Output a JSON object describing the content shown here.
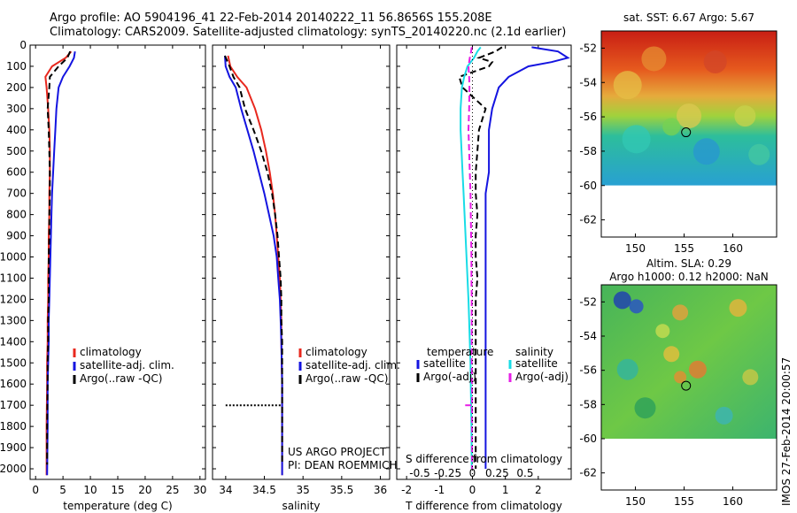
{
  "header": {
    "line1": "Argo profile: AO 5904196_41 22-Feb-2014 20140222_11 56.8656S 155.208E",
    "line2": "Climatology: CARS2009. Satellite-adjusted climatology: synTS_20140220.nc (2.1d earlier)"
  },
  "footer": {
    "project_line1": "US ARGO PROJECT",
    "project_line2": "PI: DEAN ROEMMICH",
    "timestamp": "IMOS 27-Feb-2014 20:00:57"
  },
  "colors": {
    "climatology": "#e8281e",
    "satellite": "#1414e0",
    "argo": "#000000",
    "satellite_salinity": "#19dce6",
    "argo_salinity": "#e61ee6",
    "map_mask": "#ffffff"
  },
  "chart_data": [
    {
      "id": "temperature",
      "type": "line",
      "xlabel": "temperature (deg C)",
      "ylabel": "",
      "xlim": [
        -1,
        31
      ],
      "ylim": [
        0,
        2050
      ],
      "y_inverted": true,
      "xticks": [
        0,
        5,
        10,
        15,
        20,
        25,
        30
      ],
      "yticks": [
        0,
        100,
        200,
        300,
        400,
        500,
        600,
        700,
        800,
        900,
        1000,
        1100,
        1200,
        1300,
        1400,
        1500,
        1600,
        1700,
        1800,
        1900,
        2000
      ],
      "legend": {
        "position": "bottom-right",
        "entries": [
          "climatology",
          "satellite-adj. clim.",
          "Argo(..raw -QC)"
        ]
      },
      "series": [
        {
          "name": "climatology",
          "style": "solid",
          "color_key": "climatology",
          "x": [
            6.5,
            5.5,
            3.0,
            1.8,
            2.0,
            2.3,
            2.5,
            2.6,
            2.6,
            2.5,
            2.5,
            2.4,
            2.4,
            2.3,
            2.3,
            2.2,
            2.2,
            2.1,
            2.1,
            2.0,
            2.0
          ],
          "y": [
            30,
            60,
            100,
            150,
            200,
            300,
            400,
            500,
            600,
            700,
            800,
            900,
            1000,
            1100,
            1200,
            1300,
            1400,
            1500,
            1600,
            1800,
            2030
          ]
        },
        {
          "name": "satellite-adj. clim.",
          "style": "solid",
          "color_key": "satellite",
          "x": [
            7.2,
            7.0,
            6.2,
            5.0,
            4.2,
            3.8,
            3.6,
            3.4,
            3.2,
            3.0,
            2.9,
            2.8,
            2.7,
            2.6,
            2.5,
            2.4,
            2.4,
            2.3,
            2.2,
            2.2,
            2.1
          ],
          "y": [
            30,
            60,
            100,
            150,
            200,
            300,
            400,
            500,
            600,
            700,
            800,
            900,
            1000,
            1100,
            1200,
            1300,
            1400,
            1500,
            1600,
            1800,
            2030
          ]
        },
        {
          "name": "Argo(..raw -QC)",
          "style": "dashed",
          "color_key": "argo",
          "x": [
            6.3,
            5.8,
            4.2,
            2.6,
            2.5,
            2.2,
            2.4,
            2.5,
            2.6,
            2.6,
            2.5,
            2.5,
            2.4,
            2.4,
            2.4,
            2.3,
            2.3,
            2.2,
            2.2,
            2.1,
            2.1
          ],
          "y": [
            30,
            60,
            100,
            150,
            200,
            300,
            400,
            500,
            600,
            700,
            800,
            900,
            1000,
            1100,
            1200,
            1300,
            1400,
            1500,
            1600,
            1800,
            1980
          ]
        }
      ]
    },
    {
      "id": "salinity",
      "type": "line",
      "xlabel": "salinity",
      "ylabel": "",
      "xlim": [
        33.83,
        36.12
      ],
      "ylim": [
        0,
        2050
      ],
      "y_inverted": true,
      "xticks": [
        34,
        34.5,
        35,
        35.5,
        36
      ],
      "legend": {
        "position": "bottom-right",
        "entries": [
          "climatology",
          "satellite-adj. clim.",
          "Argo(..raw -QC)"
        ]
      },
      "series": [
        {
          "name": "climatology",
          "style": "solid",
          "color_key": "climatology",
          "x": [
            34.03,
            34.06,
            34.15,
            34.27,
            34.38,
            34.46,
            34.52,
            34.57,
            34.61,
            34.64,
            34.66,
            34.68,
            34.7,
            34.71,
            34.72,
            34.72,
            34.73,
            34.73,
            34.73
          ],
          "y": [
            50,
            100,
            150,
            200,
            300,
            400,
            500,
            600,
            700,
            800,
            900,
            1000,
            1100,
            1200,
            1300,
            1400,
            1600,
            1800,
            2030
          ]
        },
        {
          "name": "satellite-adj. clim.",
          "style": "solid",
          "color_key": "satellite",
          "x": [
            33.99,
            34.0,
            34.05,
            34.13,
            34.2,
            34.28,
            34.36,
            34.43,
            34.5,
            34.56,
            34.62,
            34.66,
            34.68,
            34.7,
            34.71,
            34.72,
            34.73,
            34.73,
            34.73
          ],
          "y": [
            50,
            100,
            150,
            200,
            300,
            400,
            500,
            600,
            700,
            800,
            900,
            1000,
            1100,
            1200,
            1300,
            1400,
            1600,
            1800,
            2030
          ]
        },
        {
          "name": "Argo(..raw -QC)",
          "style": "dashed",
          "color_key": "argo",
          "x": [
            33.99,
            34.05,
            34.1,
            34.18,
            34.25,
            34.36,
            34.46,
            34.54,
            34.6,
            34.64,
            34.67,
            34.69,
            34.71,
            34.72,
            34.72,
            34.73,
            34.73,
            34.73,
            34.73
          ],
          "y": [
            50,
            100,
            150,
            200,
            300,
            400,
            500,
            600,
            700,
            800,
            900,
            1000,
            1100,
            1200,
            1300,
            1400,
            1600,
            1800,
            1980
          ]
        },
        {
          "name": "Argo(..raw -QC) flagged",
          "style": "dotted",
          "color_key": "argo",
          "x": [
            34.0,
            34.73
          ],
          "y": [
            1700,
            1700
          ]
        }
      ]
    },
    {
      "id": "difference",
      "type": "line",
      "xlabel": "T difference from climatology",
      "xlabel_top": "S difference from climatology",
      "xlim": [
        -2.3,
        3.0
      ],
      "ylim": [
        0,
        2050
      ],
      "y_inverted": true,
      "xticks": [
        -2,
        -1,
        0,
        1,
        2
      ],
      "xticks_S": [
        -0.5,
        -0.25,
        0,
        0.25,
        0.5
      ],
      "legend": {
        "position": "bottom",
        "temperature_header": "temperature",
        "salinity_header": "salinity",
        "temperature_entries": [
          "satellite",
          "Argo(-adj)"
        ],
        "salinity_entries": [
          "satellite",
          "Argo(-adj)"
        ]
      },
      "series": [
        {
          "name": "temperature satellite",
          "style": "solid",
          "color_key": "satellite",
          "x": [
            1.8,
            2.6,
            2.9,
            2.4,
            1.7,
            1.1,
            0.8,
            0.6,
            0.5,
            0.5,
            0.5,
            0.4,
            0.4,
            0.4,
            0.4,
            0.4,
            0.4,
            0.4,
            0.4,
            0.4,
            0.4,
            0.4,
            0.4
          ],
          "y": [
            10,
            30,
            60,
            80,
            100,
            150,
            200,
            300,
            400,
            500,
            600,
            700,
            800,
            900,
            1000,
            1100,
            1200,
            1300,
            1400,
            1500,
            1600,
            1800,
            2000
          ]
        },
        {
          "name": "temperature Argo(-adj)",
          "style": "dashed",
          "color_key": "argo",
          "x": [
            0.9,
            0.7,
            0.2,
            0.6,
            0.5,
            -0.4,
            -0.3,
            0.4,
            0.2,
            0.15,
            0.1,
            0.1,
            0.15,
            0.1,
            0.1,
            0.15,
            0.1,
            0.1,
            0.1,
            0.1,
            0.1,
            0.1,
            0.1
          ],
          "y": [
            10,
            30,
            60,
            80,
            100,
            150,
            200,
            300,
            400,
            500,
            600,
            700,
            800,
            900,
            1000,
            1100,
            1200,
            1300,
            1400,
            1500,
            1600,
            1800,
            2000
          ]
        },
        {
          "name": "salinity satellite",
          "style": "solid",
          "color_key": "satellite_salinity",
          "x": [
            0.25,
            0.15,
            0.05,
            -0.05,
            -0.15,
            -0.25,
            -0.32,
            -0.36,
            -0.36,
            -0.33,
            -0.3,
            -0.27,
            -0.24,
            -0.21,
            -0.18,
            -0.15,
            -0.12,
            -0.1,
            -0.08,
            -0.06,
            -0.05,
            -0.03,
            -0.02
          ],
          "y": [
            10,
            30,
            60,
            80,
            100,
            150,
            200,
            300,
            400,
            500,
            600,
            700,
            800,
            900,
            1000,
            1100,
            1200,
            1300,
            1400,
            1500,
            1600,
            1800,
            2000
          ]
        },
        {
          "name": "salinity Argo(-adj)",
          "style": "dashed",
          "color_key": "argo_salinity",
          "x": [
            -0.02,
            -0.04,
            -0.08,
            -0.1,
            -0.12,
            -0.1,
            -0.09,
            -0.1,
            -0.12,
            -0.1,
            -0.08,
            -0.06,
            -0.05,
            -0.04,
            -0.03,
            -0.03,
            -0.02,
            -0.02,
            -0.02,
            -0.02,
            -0.01,
            -0.01,
            -0.01
          ],
          "y": [
            10,
            30,
            60,
            80,
            100,
            150,
            200,
            300,
            400,
            500,
            600,
            700,
            800,
            900,
            1000,
            1100,
            1200,
            1300,
            1400,
            1500,
            1600,
            1800,
            2000
          ]
        },
        {
          "name": "salinity Argo(-adj) flagged",
          "style": "dashed",
          "color_key": "argo_salinity",
          "x": [
            -0.22,
            -0.01
          ],
          "y": [
            1700,
            1700
          ]
        }
      ]
    },
    {
      "id": "sst_map",
      "type": "heatmap",
      "title": "sat. SST: 6.67  Argo: 5.67",
      "xlim": [
        146.5,
        164.5
      ],
      "ylim": [
        -63,
        -51
      ],
      "xticks": [
        150,
        155,
        160
      ],
      "yticks": [
        -52,
        -54,
        -56,
        -58,
        -60,
        -62
      ],
      "grid": false,
      "float_position": {
        "lon": 155.2,
        "lat": -56.9
      }
    },
    {
      "id": "sla_map",
      "type": "heatmap",
      "title": "Altim. SLA: 0.29",
      "subtitle": "Argo h1000: 0.12  h2000: NaN",
      "xlim": [
        146.5,
        164.5
      ],
      "ylim": [
        -63,
        -51
      ],
      "xticks": [
        150,
        155,
        160
      ],
      "yticks": [
        -52,
        -54,
        -56,
        -58,
        -60,
        -62
      ],
      "grid": false,
      "float_position": {
        "lon": 155.2,
        "lat": -56.9
      }
    }
  ]
}
